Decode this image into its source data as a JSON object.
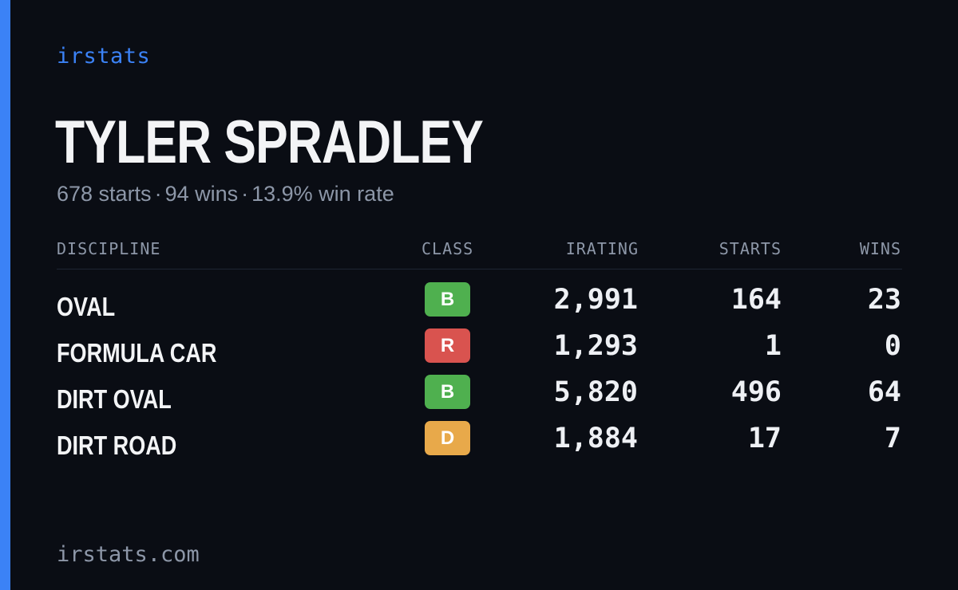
{
  "brand": "irstats",
  "driver": {
    "name": "TYLER SPRADLEY",
    "starts_text": "678 starts",
    "wins_text": "94 wins",
    "win_rate_text": "13.9% win rate",
    "separator": "·"
  },
  "table": {
    "headers": {
      "discipline": "DISCIPLINE",
      "class": "CLASS",
      "irating": "IRATING",
      "starts": "STARTS",
      "wins": "WINS"
    },
    "rows": [
      {
        "discipline": "OVAL",
        "class": "B",
        "class_color": "#4fb04f",
        "irating": "2,991",
        "starts": "164",
        "wins": "23"
      },
      {
        "discipline": "FORMULA CAR",
        "class": "R",
        "class_color": "#d9534f",
        "irating": "1,293",
        "starts": "1",
        "wins": "0"
      },
      {
        "discipline": "DIRT OVAL",
        "class": "B",
        "class_color": "#4fb04f",
        "irating": "5,820",
        "starts": "496",
        "wins": "64"
      },
      {
        "discipline": "DIRT ROAD",
        "class": "D",
        "class_color": "#e8a94a",
        "irating": "1,884",
        "starts": "17",
        "wins": "7"
      }
    ]
  },
  "footer": {
    "url": "irstats.com"
  },
  "colors": {
    "accent": "#3b82f6",
    "background": "#0a0d14",
    "muted_text": "#8d97a8",
    "primary_text": "#f3f4f6"
  }
}
